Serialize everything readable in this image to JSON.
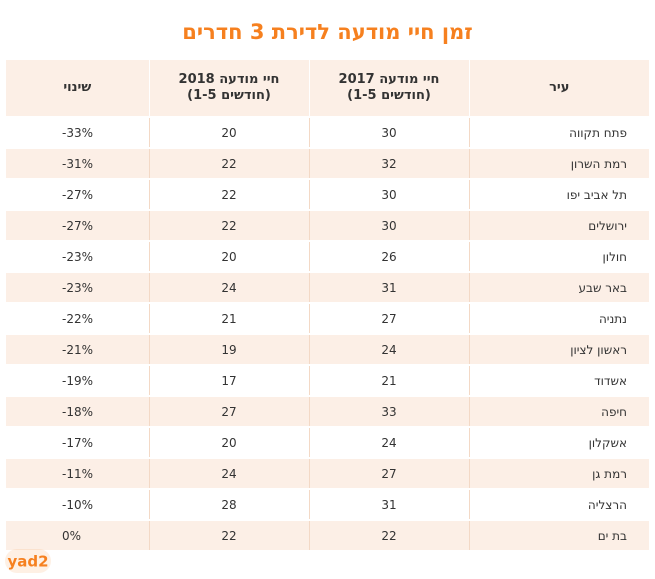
{
  "title": "זמן חיי מודעה לדירת 3 חדרים",
  "columns": {
    "city": "עיר",
    "y2017": "חיי מודעה 2017",
    "y2017_sub": "(חודשים 1-5)",
    "y2018": "חיי מודעה 2018",
    "y2018_sub": "(חודשים 1-5)",
    "change": "שינוי"
  },
  "chart_data": {
    "type": "table",
    "title": "זמן חיי מודעה לדירת 3 חדרים",
    "headers": [
      "עיר",
      "חיי מודעה 2017 (חודשים 1-5)",
      "חיי מודעה 2018 (חודשים 1-5)",
      "שינוי"
    ],
    "rows": [
      {
        "city": "פתח תקווה",
        "y2017": "30",
        "y2018": "20",
        "change": "-33%"
      },
      {
        "city": "רמת השרון",
        "y2017": "32",
        "y2018": "22",
        "change": "-31%"
      },
      {
        "city": "תל אביב יפו",
        "y2017": "30",
        "y2018": "22",
        "change": "-27%"
      },
      {
        "city": "ירושלים",
        "y2017": "30",
        "y2018": "22",
        "change": "-27%"
      },
      {
        "city": "חולון",
        "y2017": "26",
        "y2018": "20",
        "change": "-23%"
      },
      {
        "city": "באר שבע",
        "y2017": "31",
        "y2018": "24",
        "change": "-23%"
      },
      {
        "city": "נתניה",
        "y2017": "27",
        "y2018": "21",
        "change": "-22%"
      },
      {
        "city": "ראשון לציון",
        "y2017": "24",
        "y2018": "19",
        "change": "-21%"
      },
      {
        "city": "אשדוד",
        "y2017": "21",
        "y2018": "17",
        "change": "-19%"
      },
      {
        "city": "חיפה",
        "y2017": "33",
        "y2018": "27",
        "change": "-18%"
      },
      {
        "city": "אשקלון",
        "y2017": "24",
        "y2018": "20",
        "change": "-17%"
      },
      {
        "city": "רמת גן",
        "y2017": "27",
        "y2018": "24",
        "change": "-11%"
      },
      {
        "city": "הרצליה",
        "y2017": "31",
        "y2018": "28",
        "change": "-10%"
      },
      {
        "city": "בת ים",
        "y2017": "22",
        "y2018": "22",
        "change": "0%"
      }
    ]
  },
  "logo": {
    "text": "yad2",
    "color": "#f6801f"
  }
}
